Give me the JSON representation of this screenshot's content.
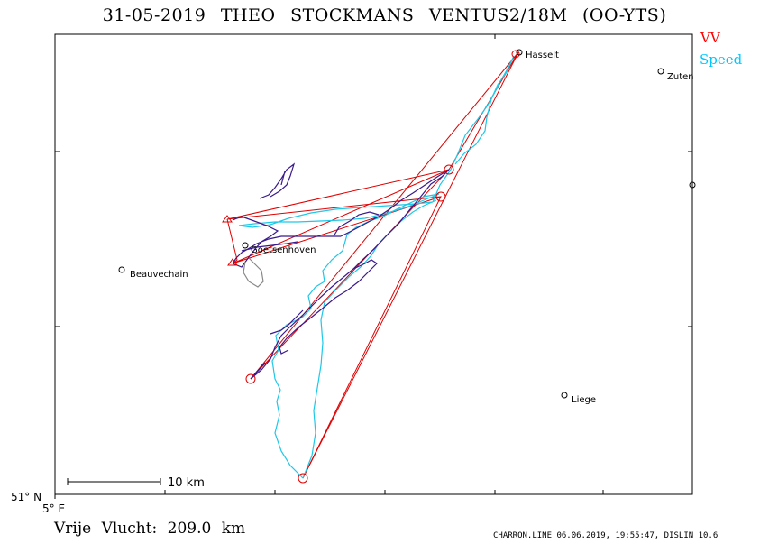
{
  "header": {
    "title": "31-05-2019 THEO STOCKMANS VENTUS2/18M (OO-YTS)"
  },
  "legend": {
    "vv_label": "VV",
    "speed_label": "Speed",
    "vv_color": "#ff0000",
    "speed_color": "#00c8ff"
  },
  "track_colors": {
    "climb": "#3a1a8c",
    "glide": "#1ec8e8",
    "low": "#888888"
  },
  "places": [
    {
      "name": "Hasselt"
    },
    {
      "name": "Zuten"
    },
    {
      "name": "Goetsenhoven"
    },
    {
      "name": "Beauvechain"
    },
    {
      "name": "Liege"
    }
  ],
  "scale_bar": {
    "label": "10 km"
  },
  "axes": {
    "lat_label": "51° N",
    "lon_label": "5° E"
  },
  "footer": {
    "distance_text": "Vrije Vlucht: 209.0 km",
    "credits": "CHARRON.LINE 06.06.2019, 19:55:47, DISLIN 10.6"
  }
}
